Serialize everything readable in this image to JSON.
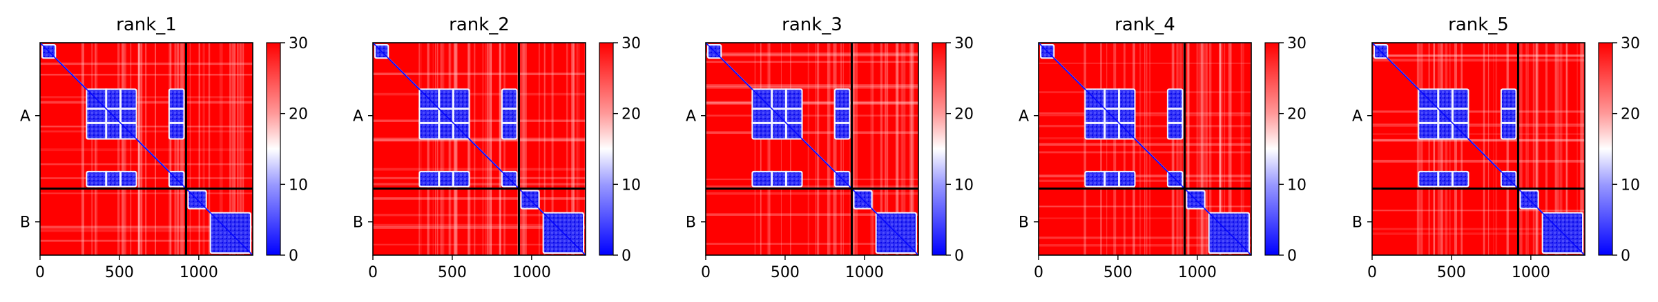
{
  "chart_data": [
    {
      "type": "heatmap",
      "title": "rank_1",
      "n": 1340,
      "boundary": 920,
      "chain_labels": [
        "A",
        "B"
      ],
      "xticks": [
        0,
        500,
        1000
      ],
      "colorbar": {
        "min": 0,
        "max": 30,
        "ticks": [
          0,
          10,
          20,
          30
        ],
        "colors": [
          "#0000ff",
          "#ffffff",
          "#ff0000"
        ]
      },
      "blocks": [
        [
          0,
          110
        ],
        [
          280,
          620
        ],
        [
          800,
          920
        ],
        [
          920,
          1060
        ],
        [
          1060,
          1340
        ]
      ]
    },
    {
      "type": "heatmap",
      "title": "rank_2",
      "n": 1340,
      "boundary": 920,
      "chain_labels": [
        "A",
        "B"
      ],
      "xticks": [
        0,
        500,
        1000
      ],
      "colorbar": {
        "min": 0,
        "max": 30,
        "ticks": [
          0,
          10,
          20,
          30
        ],
        "colors": [
          "#0000ff",
          "#ffffff",
          "#ff0000"
        ]
      },
      "blocks": [
        [
          0,
          110
        ],
        [
          280,
          620
        ],
        [
          800,
          920
        ],
        [
          920,
          1060
        ],
        [
          1060,
          1340
        ]
      ]
    },
    {
      "type": "heatmap",
      "title": "rank_3",
      "n": 1340,
      "boundary": 920,
      "chain_labels": [
        "A",
        "B"
      ],
      "xticks": [
        0,
        500,
        1000
      ],
      "colorbar": {
        "min": 0,
        "max": 30,
        "ticks": [
          0,
          10,
          20,
          30
        ],
        "colors": [
          "#0000ff",
          "#ffffff",
          "#ff0000"
        ]
      },
      "blocks": [
        [
          0,
          110
        ],
        [
          280,
          620
        ],
        [
          800,
          920
        ],
        [
          920,
          1060
        ],
        [
          1060,
          1340
        ]
      ]
    },
    {
      "type": "heatmap",
      "title": "rank_4",
      "n": 1340,
      "boundary": 920,
      "chain_labels": [
        "A",
        "B"
      ],
      "xticks": [
        0,
        500,
        1000
      ],
      "colorbar": {
        "min": 0,
        "max": 30,
        "ticks": [
          0,
          10,
          20,
          30
        ],
        "colors": [
          "#0000ff",
          "#ffffff",
          "#ff0000"
        ]
      },
      "blocks": [
        [
          0,
          110
        ],
        [
          280,
          620
        ],
        [
          800,
          920
        ],
        [
          920,
          1060
        ],
        [
          1060,
          1340
        ]
      ]
    },
    {
      "type": "heatmap",
      "title": "rank_5",
      "n": 1340,
      "boundary": 920,
      "chain_labels": [
        "A",
        "B"
      ],
      "xticks": [
        0,
        500,
        1000
      ],
      "colorbar": {
        "min": 0,
        "max": 30,
        "ticks": [
          0,
          10,
          20,
          30
        ],
        "colors": [
          "#0000ff",
          "#ffffff",
          "#ff0000"
        ]
      },
      "blocks": [
        [
          0,
          110
        ],
        [
          280,
          620
        ],
        [
          800,
          920
        ],
        [
          920,
          1060
        ],
        [
          1060,
          1340
        ]
      ]
    }
  ]
}
